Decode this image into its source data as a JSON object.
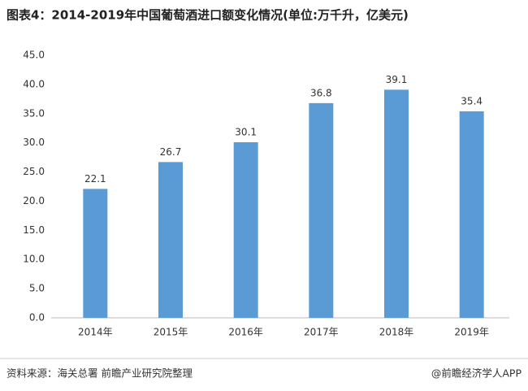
{
  "chart_data": {
    "type": "bar",
    "title": "图表4：2014-2019年中国葡萄酒进口额变化情况(单位:万千升，亿美元)",
    "categories": [
      "2014年",
      "2015年",
      "2016年",
      "2017年",
      "2018年",
      "2019年"
    ],
    "values": [
      22.1,
      26.7,
      30.1,
      36.8,
      39.1,
      35.4
    ],
    "color": "#5b9bd5",
    "ylim": [
      0,
      45
    ],
    "yticks": [
      {
        "value": 0,
        "label": "0.0"
      },
      {
        "value": 5,
        "label": "5.0"
      },
      {
        "value": 10,
        "label": "10.0"
      },
      {
        "value": 15,
        "label": "15.0"
      },
      {
        "value": 20,
        "label": "20.0"
      },
      {
        "value": 25,
        "label": "25.0"
      },
      {
        "value": 30,
        "label": "30.0"
      },
      {
        "value": 35,
        "label": "35.0"
      },
      {
        "value": 40,
        "label": "40.0"
      },
      {
        "value": 45,
        "label": "45.0"
      }
    ],
    "grid": false,
    "source": "资料来源：海关总署 前瞻产业研究院整理",
    "credit": "@前瞻经济学人APP"
  }
}
